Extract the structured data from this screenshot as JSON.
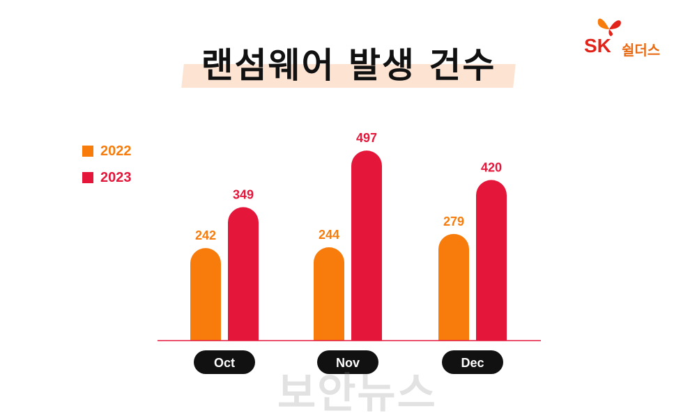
{
  "title": "랜섬웨어 발생 건수",
  "logo": {
    "brand": "SK",
    "name": "쉴더스"
  },
  "watermark": "보안뉴스",
  "colors": {
    "s2022": "#f77c0b",
    "s2023": "#e4173b",
    "axis": "#e4173b",
    "pill": "#111111"
  },
  "chart_data": {
    "type": "bar",
    "categories": [
      "Oct",
      "Nov",
      "Dec"
    ],
    "series": [
      {
        "name": "2022",
        "values": [
          242,
          244,
          279
        ],
        "color": "#f77c0b"
      },
      {
        "name": "2023",
        "values": [
          349,
          497,
          420
        ],
        "color": "#e4173b"
      }
    ],
    "legend": "left",
    "grid": false
  }
}
